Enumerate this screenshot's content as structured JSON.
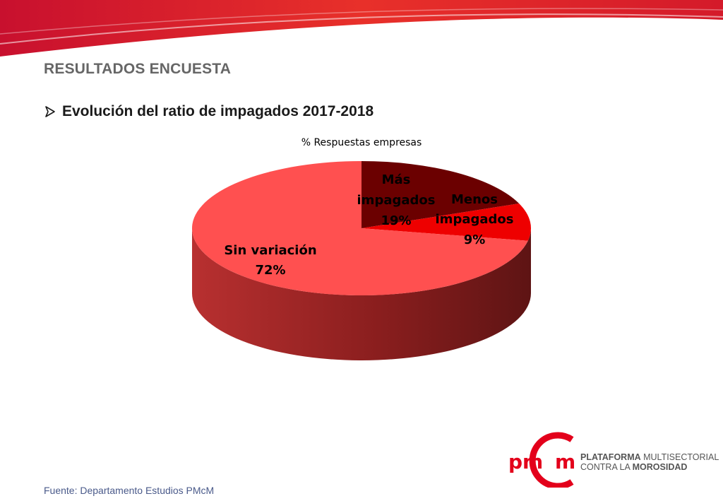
{
  "header": {
    "section_title": "RESULTADOS ENCUESTA",
    "subtitle": "Evolución del ratio de impagados 2017-2018"
  },
  "chart_data": {
    "type": "pie",
    "title": "% Respuestas empresas",
    "slices": [
      {
        "label": "Más impagados",
        "value": 19,
        "display": "19%",
        "color": "#6b0000"
      },
      {
        "label": "Menos impagados",
        "value": 9,
        "display": "9%",
        "color": "#ee0000"
      },
      {
        "label": "Sin variación",
        "value": 72,
        "display": "72%",
        "color": "#ff5050"
      }
    ]
  },
  "footer": {
    "source": "Fuente: Departamento Estudios PMcM"
  },
  "logo": {
    "mark": "pmcm",
    "line1_bold": "PLATAFORMA",
    "line1_rest": " MULTISECTORIAL",
    "line2_rest": "CONTRA LA ",
    "line2_bold": "MOROSIDAD"
  },
  "colors": {
    "brand_red": "#e3001b",
    "title_gray": "#666666"
  }
}
